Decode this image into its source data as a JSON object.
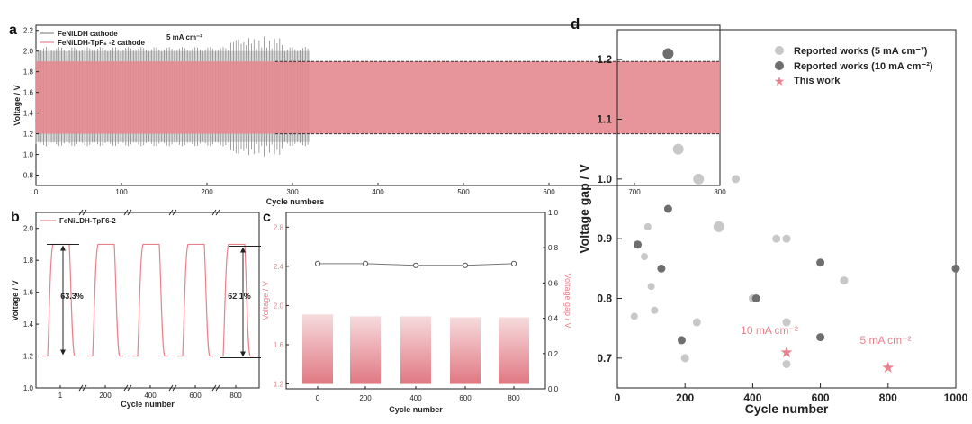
{
  "colors": {
    "pink": "#e8828e",
    "pink_band": "#e48a90",
    "gray_line": "#8a8a8a",
    "light_dot": "#c8c8c8",
    "dark_dot": "#6e6e6e",
    "dashed": "#333333"
  },
  "panel_a": {
    "label": "a",
    "annotation": "5 mA cm⁻²",
    "legend": [
      "FeNiLDH cathode",
      "FeNiLDH-TpF₆ -2 cathode"
    ],
    "ylabel": "Voltage / V",
    "xlabel": "Cycle numbers",
    "xticks": [
      "0",
      "100",
      "200",
      "300",
      "400",
      "500",
      "600",
      "700",
      "800"
    ],
    "yticks": [
      "0.8",
      "1.0",
      "1.2",
      "1.4",
      "1.6",
      "1.8",
      "2.0",
      "2.2"
    ],
    "chart_data": {
      "type": "line",
      "xlim": [
        0,
        800
      ],
      "ylim": [
        0.7,
        2.25
      ],
      "series": [
        {
          "name": "FeNiLDH cathode",
          "x_range": [
            0,
            320
          ],
          "upper_v": 2.0,
          "lower_v": 1.12
        },
        {
          "name": "FeNiLDH-TpF6-2 cathode",
          "x_range": [
            0,
            800
          ],
          "upper_v": 1.9,
          "lower_v": 1.2
        }
      ]
    }
  },
  "panel_b": {
    "label": "b",
    "legend": "FeNiLDH-TpF6-2",
    "ylabel": "Voltage / V",
    "xlabel": "Cycle number",
    "xticks": [
      "1",
      "200",
      "400",
      "600",
      "800"
    ],
    "yticks": [
      "1.0",
      "1.2",
      "1.4",
      "1.6",
      "1.8",
      "2.0"
    ],
    "annotations": [
      "63.3%",
      "62.1%"
    ],
    "chart_data": {
      "type": "line",
      "ylim": [
        1.0,
        2.1
      ],
      "cycles": [
        "1",
        "200",
        "400",
        "600",
        "800"
      ],
      "charge_plateau_v": 1.9,
      "discharge_plateau_v": 1.2
    }
  },
  "panel_c": {
    "label": "c",
    "ylabel_left": "Voltage / V",
    "ylabel_right": "Voltage gap / V",
    "xlabel": "Cycle number",
    "xticks": [
      "0",
      "200",
      "400",
      "600",
      "800"
    ],
    "yticks_left": [
      "1.2",
      "1.6",
      "2.0",
      "2.4",
      "2.8"
    ],
    "yticks_right": [
      "0.0",
      "0.2",
      "0.4",
      "0.6",
      "0.8",
      "1.0"
    ],
    "chart_data": {
      "type": "bar",
      "categories": [
        "0",
        "200",
        "400",
        "600",
        "800"
      ],
      "bar_top_voltage": [
        1.91,
        1.89,
        1.89,
        1.88,
        1.88
      ],
      "bar_bottom_voltage": [
        1.2,
        1.2,
        1.2,
        1.2,
        1.2
      ],
      "voltage_gap": [
        0.71,
        0.71,
        0.7,
        0.7,
        0.71
      ],
      "ylim_left": [
        1.15,
        2.95
      ],
      "ylim_right": [
        0,
        1.0
      ]
    }
  },
  "panel_d": {
    "label": "d",
    "ylabel": "Voltage gap / V",
    "xlabel": "Cycle number",
    "xticks": [
      "0",
      "200",
      "400",
      "600",
      "800",
      "1000"
    ],
    "yticks": [
      "0.7",
      "0.8",
      "0.9",
      "1.0",
      "1.1",
      "1.2"
    ],
    "legend": [
      "Reported works (5 mA cm⁻²)",
      "Reported works (10 mA cm⁻²)",
      "This work"
    ],
    "annotations": [
      "10 mA cm⁻²",
      "5 mA cm⁻²"
    ],
    "chart_data": {
      "type": "scatter",
      "xlim": [
        0,
        1000
      ],
      "ylim": [
        0.65,
        1.25
      ],
      "series": [
        {
          "name": "Reported works (5 mA cm-2)",
          "points": [
            [
              50,
              0.77
            ],
            [
              80,
              0.87
            ],
            [
              90,
              0.92
            ],
            [
              100,
              0.82
            ],
            [
              110,
              0.78
            ],
            [
              180,
              1.05
            ],
            [
              200,
              0.7
            ],
            [
              235,
              0.76
            ],
            [
              240,
              1.0
            ],
            [
              300,
              0.92
            ],
            [
              350,
              1.0
            ],
            [
              400,
              0.8
            ],
            [
              470,
              0.9
            ],
            [
              500,
              0.9
            ],
            [
              500,
              0.76
            ],
            [
              500,
              0.69
            ],
            [
              670,
              0.83
            ]
          ]
        },
        {
          "name": "Reported works (10 mA cm-2)",
          "points": [
            [
              60,
              0.89
            ],
            [
              130,
              0.85
            ],
            [
              150,
              1.21
            ],
            [
              150,
              0.95
            ],
            [
              190,
              0.73
            ],
            [
              410,
              0.8
            ],
            [
              600,
              0.86
            ],
            [
              600,
              0.735
            ],
            [
              1000,
              0.85
            ]
          ]
        },
        {
          "name": "This work",
          "points": [
            [
              500,
              0.71
            ],
            [
              800,
              0.685
            ]
          ]
        }
      ]
    }
  }
}
